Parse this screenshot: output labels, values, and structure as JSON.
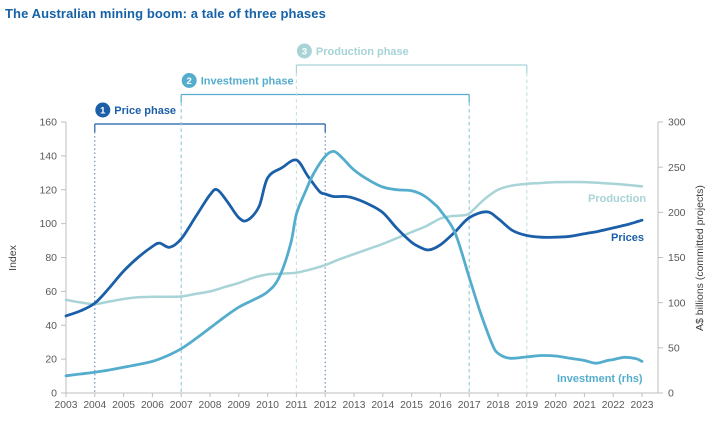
{
  "title": "The Australian mining boom: a tale of three phases",
  "colors": {
    "title": "#1562a8",
    "prices": "#1b5fa8",
    "investment": "#55adcd",
    "production": "#a8d3d7",
    "axis_line": "#bfbfbf",
    "tick_text": "#595959",
    "axis_title_text": "#404040"
  },
  "chart_data": {
    "type": "line",
    "title": "The Australian mining boom: a tale of three phases",
    "x_axis": {
      "ticks": [
        2003,
        2004,
        2005,
        2006,
        2007,
        2008,
        2009,
        2010,
        2011,
        2012,
        2013,
        2014,
        2015,
        2016,
        2017,
        2018,
        2019,
        2020,
        2021,
        2022,
        2023
      ],
      "range": [
        2003,
        2023.55
      ]
    },
    "left_axis": {
      "label": "Index",
      "ticks": [
        0,
        20,
        40,
        60,
        80,
        100,
        120,
        140,
        160
      ],
      "range": [
        0,
        160
      ],
      "grid": false
    },
    "right_axis": {
      "label": "A$ billions (committed projects)",
      "ticks": [
        0,
        50,
        100,
        150,
        200,
        250,
        300
      ],
      "range": [
        0,
        300
      ],
      "grid": false
    },
    "annotations": [
      {
        "num": "1",
        "label": "Price phase",
        "start_year": 2004,
        "end_year": 2012,
        "level": 1,
        "color": "#1b5fa8",
        "dash_color": "#6286ab",
        "dash": "1.5 2.6"
      },
      {
        "num": "2",
        "label": "Investment phase",
        "start_year": 2007,
        "end_year": 2017,
        "level": 2,
        "color": "#55adcd",
        "dash_color": "#93c6da",
        "dash": "3.5 3"
      },
      {
        "num": "3",
        "label": "Production phase",
        "start_year": 2011,
        "end_year": 2019,
        "level": 3,
        "color": "#a8d3d7",
        "dash_color": "#c7dfe2",
        "dash": "3.5 3"
      }
    ],
    "series": [
      {
        "name": "Production",
        "label": "Production",
        "axis": "left",
        "color": "#a8d3d7",
        "width": 2.5,
        "points": [
          [
            2003,
            55
          ],
          [
            2003.5,
            53.5
          ],
          [
            2004,
            52.5
          ],
          [
            2004.5,
            54
          ],
          [
            2005,
            55.5
          ],
          [
            2005.5,
            56.5
          ],
          [
            2006,
            56.8
          ],
          [
            2006.5,
            56.8
          ],
          [
            2007,
            57
          ],
          [
            2007.5,
            58.5
          ],
          [
            2008,
            60
          ],
          [
            2008.5,
            62.5
          ],
          [
            2009,
            65
          ],
          [
            2009.5,
            68
          ],
          [
            2010,
            70
          ],
          [
            2010.5,
            70.5
          ],
          [
            2011,
            71
          ],
          [
            2011.5,
            73
          ],
          [
            2012,
            75.5
          ],
          [
            2012.5,
            79
          ],
          [
            2013,
            82
          ],
          [
            2013.5,
            85
          ],
          [
            2014,
            88
          ],
          [
            2014.5,
            91.5
          ],
          [
            2015,
            95
          ],
          [
            2015.5,
            98.5
          ],
          [
            2016,
            103
          ],
          [
            2016.35,
            104.3
          ],
          [
            2016.7,
            104.8
          ],
          [
            2017,
            106
          ],
          [
            2017.5,
            114
          ],
          [
            2018,
            120
          ],
          [
            2018.5,
            122.5
          ],
          [
            2019,
            123.5
          ],
          [
            2019.5,
            124
          ],
          [
            2020,
            124.5
          ],
          [
            2021,
            124.5
          ],
          [
            2022,
            123.5
          ],
          [
            2023,
            122
          ]
        ]
      },
      {
        "name": "Prices",
        "label": "Prices",
        "axis": "left",
        "color": "#1b5fa8",
        "width": 2.8,
        "points": [
          [
            2003,
            45.5
          ],
          [
            2003.5,
            48.5
          ],
          [
            2004,
            53
          ],
          [
            2004.5,
            62
          ],
          [
            2005,
            72
          ],
          [
            2005.5,
            80
          ],
          [
            2006,
            86.5
          ],
          [
            2006.25,
            88.5
          ],
          [
            2006.6,
            86
          ],
          [
            2007,
            91
          ],
          [
            2007.5,
            104
          ],
          [
            2008,
            117
          ],
          [
            2008.25,
            120
          ],
          [
            2008.6,
            113
          ],
          [
            2009,
            103.5
          ],
          [
            2009.3,
            102
          ],
          [
            2009.7,
            110
          ],
          [
            2010,
            127
          ],
          [
            2010.5,
            133
          ],
          [
            2011,
            137.5
          ],
          [
            2011.4,
            128
          ],
          [
            2011.8,
            119
          ],
          [
            2012,
            117.5
          ],
          [
            2012.3,
            116
          ],
          [
            2012.7,
            116
          ],
          [
            2013,
            115
          ],
          [
            2013.5,
            111.5
          ],
          [
            2014,
            106.5
          ],
          [
            2014.5,
            97
          ],
          [
            2015,
            89
          ],
          [
            2015.3,
            86
          ],
          [
            2015.6,
            84.5
          ],
          [
            2016,
            87.5
          ],
          [
            2016.5,
            95
          ],
          [
            2017,
            103.5
          ],
          [
            2017.6,
            107
          ],
          [
            2018,
            103
          ],
          [
            2018.5,
            96
          ],
          [
            2019,
            93
          ],
          [
            2019.5,
            92
          ],
          [
            2020,
            92
          ],
          [
            2020.5,
            92.5
          ],
          [
            2021,
            94
          ],
          [
            2021.5,
            95.5
          ],
          [
            2022,
            97.5
          ],
          [
            2022.5,
            99.5
          ],
          [
            2023,
            102
          ]
        ]
      },
      {
        "name": "Investment",
        "label": "Investment (rhs)",
        "axis": "right",
        "color": "#55adcd",
        "width": 2.8,
        "points": [
          [
            2003,
            19
          ],
          [
            2003.5,
            21
          ],
          [
            2004,
            23
          ],
          [
            2004.5,
            25.5
          ],
          [
            2005,
            28.5
          ],
          [
            2005.5,
            31.5
          ],
          [
            2006,
            35
          ],
          [
            2006.5,
            41
          ],
          [
            2007,
            49
          ],
          [
            2007.5,
            60
          ],
          [
            2008,
            72
          ],
          [
            2008.5,
            84
          ],
          [
            2009,
            95
          ],
          [
            2009.5,
            103
          ],
          [
            2010,
            112
          ],
          [
            2010.4,
            128
          ],
          [
            2010.8,
            165
          ],
          [
            2011,
            198
          ],
          [
            2011.3,
            222
          ],
          [
            2011.6,
            243
          ],
          [
            2012,
            262
          ],
          [
            2012.3,
            267.5
          ],
          [
            2012.6,
            260
          ],
          [
            2013,
            247
          ],
          [
            2013.5,
            236
          ],
          [
            2014,
            228
          ],
          [
            2014.5,
            225
          ],
          [
            2015,
            224
          ],
          [
            2015.4,
            219
          ],
          [
            2015.8,
            209
          ],
          [
            2016,
            202
          ],
          [
            2016.5,
            178
          ],
          [
            2017,
            128
          ],
          [
            2017.4,
            88
          ],
          [
            2017.8,
            54
          ],
          [
            2018,
            44
          ],
          [
            2018.4,
            38.5
          ],
          [
            2019,
            40
          ],
          [
            2019.5,
            41.5
          ],
          [
            2020,
            41
          ],
          [
            2020.5,
            38.5
          ],
          [
            2021,
            36
          ],
          [
            2021.4,
            33
          ],
          [
            2021.8,
            36
          ],
          [
            2022,
            37
          ],
          [
            2022.4,
            39.5
          ],
          [
            2022.8,
            38
          ],
          [
            2023,
            35
          ]
        ]
      }
    ]
  }
}
